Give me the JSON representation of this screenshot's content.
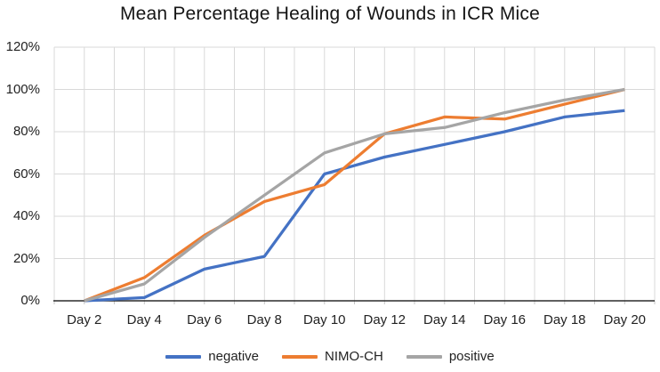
{
  "chart_data": {
    "type": "line",
    "title": "Mean Percentage Healing of Wounds in ICR Mice",
    "categories": [
      "Day 2",
      "Day 4",
      "Day 6",
      "Day 8",
      "Day 10",
      "Day 12",
      "Day 14",
      "Day 16",
      "Day 18",
      "Day 20"
    ],
    "series": [
      {
        "name": "negative",
        "color": "#4472C4",
        "values": [
          0,
          1.5,
          15,
          21,
          60,
          68,
          74,
          80,
          87,
          90
        ]
      },
      {
        "name": "NIMO-CH",
        "color": "#ED7D31",
        "values": [
          0,
          11,
          31,
          47,
          55,
          79,
          87,
          86,
          93,
          100
        ]
      },
      {
        "name": "positive",
        "color": "#A5A5A5",
        "values": [
          0,
          8,
          30,
          50,
          70,
          79,
          82,
          89,
          95,
          100
        ]
      }
    ],
    "y_ticks": [
      "0%",
      "20%",
      "40%",
      "60%",
      "80%",
      "100%",
      "120%"
    ],
    "ylim": [
      0,
      120
    ],
    "xlabel": "",
    "ylabel": "",
    "grid": {
      "horizontal": true,
      "vertical": true,
      "minor_vertical": true
    },
    "legend_position": "bottom",
    "colors": {
      "gridline": "#D9D9D9",
      "tick_mark": "#C6C6C6",
      "axis_line": "#2B2B2B",
      "text": "#222222",
      "background": "#FFFFFF"
    }
  }
}
